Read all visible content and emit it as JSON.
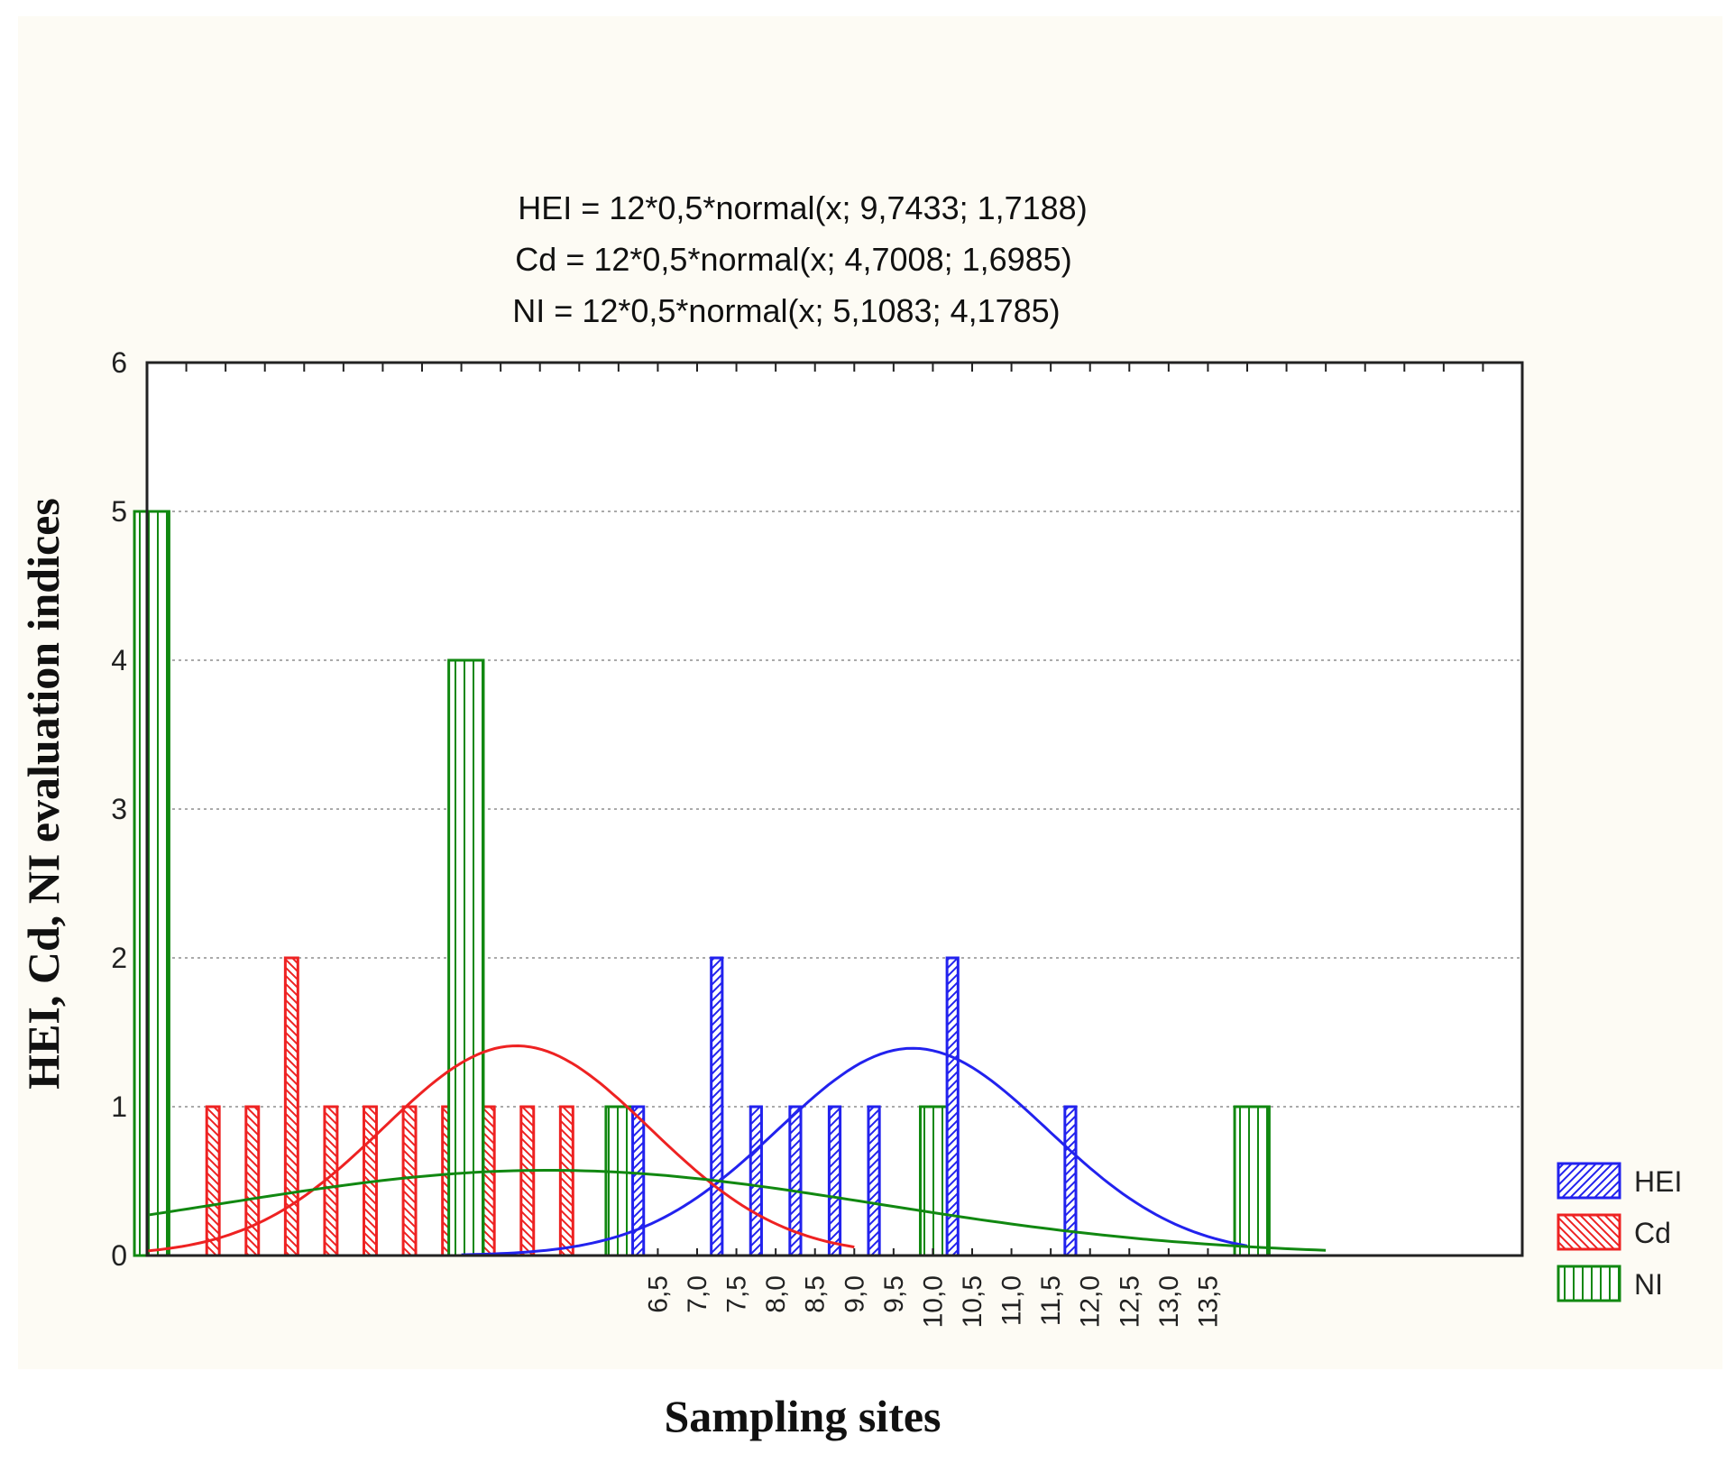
{
  "chart_data": {
    "type": "bar",
    "title": "",
    "formulas": [
      "HEI = 12*0,5*normal(x; 9,7433; 1,7188)",
      "Cd = 12*0,5*normal(x; 4,7008; 1,6985)",
      "NI = 12*0,5*normal(x; 5,1083; 4,1785)"
    ],
    "xlabel": "Sampling sites",
    "ylabel": "HEI, Cd, NI evaluation indices",
    "ylim": [
      0,
      6
    ],
    "xlim": [
      0,
      17.5
    ],
    "yticks": [
      "0",
      "1",
      "2",
      "3",
      "4",
      "5",
      "6"
    ],
    "xticks": [
      "6,5",
      "7,0",
      "7,5",
      "8,0",
      "8,5",
      "9,0",
      "9,5",
      "10,0",
      "10,5",
      "11,0",
      "11,5",
      "12,0",
      "12,5",
      "13,0",
      "13,5"
    ],
    "xtick_start": 6.5,
    "xtick_step": 0.5,
    "grid": true,
    "legend_position": "bottom-right",
    "series": [
      {
        "name": "HEI",
        "color": "#2222ee",
        "bins": [
          [
            6.0,
            0
          ],
          [
            6.5,
            1
          ],
          [
            7.0,
            0
          ],
          [
            7.5,
            2
          ],
          [
            8.0,
            1
          ],
          [
            8.5,
            1
          ],
          [
            9.0,
            1
          ],
          [
            9.5,
            1
          ],
          [
            10.0,
            0
          ],
          [
            10.5,
            2
          ],
          [
            11.0,
            0
          ],
          [
            11.5,
            0
          ],
          [
            12.0,
            1
          ],
          [
            12.5,
            0
          ]
        ],
        "curve": {
          "mean": 9.7433,
          "sd": 1.7188,
          "scale": 6,
          "from": 4.0,
          "to": 14.0
        }
      },
      {
        "name": "Cd",
        "color": "#ee2222",
        "bins": [
          [
            1.0,
            1
          ],
          [
            1.5,
            1
          ],
          [
            2.0,
            2
          ],
          [
            2.5,
            1
          ],
          [
            3.0,
            1
          ],
          [
            3.5,
            1
          ],
          [
            4.0,
            1
          ],
          [
            4.5,
            1
          ],
          [
            5.0,
            1
          ],
          [
            5.5,
            1
          ]
        ],
        "curve": {
          "mean": 4.7008,
          "sd": 1.6985,
          "scale": 6,
          "from": 0.0,
          "to": 9.0
        }
      },
      {
        "name": "NI",
        "color": "#118811",
        "bins": [
          [
            0.0,
            5
          ],
          [
            0.5,
            0
          ],
          [
            1.0,
            0
          ],
          [
            1.5,
            0
          ],
          [
            2.0,
            0
          ],
          [
            2.5,
            0
          ],
          [
            3.0,
            0
          ],
          [
            3.5,
            0
          ],
          [
            4.0,
            4
          ],
          [
            4.5,
            0
          ],
          [
            5.0,
            0
          ],
          [
            5.5,
            0
          ],
          [
            6.0,
            1
          ],
          [
            6.5,
            0
          ],
          [
            7.0,
            0
          ],
          [
            7.5,
            0
          ],
          [
            8.0,
            0
          ],
          [
            8.5,
            0
          ],
          [
            9.0,
            0
          ],
          [
            9.5,
            0
          ],
          [
            10.0,
            1
          ],
          [
            10.5,
            0
          ],
          [
            11.0,
            0
          ],
          [
            11.5,
            0
          ],
          [
            12.0,
            0
          ],
          [
            12.5,
            0
          ],
          [
            13.0,
            0
          ],
          [
            13.5,
            0
          ],
          [
            14.0,
            1
          ],
          [
            14.5,
            0
          ]
        ],
        "curve": {
          "mean": 5.1083,
          "sd": 4.1785,
          "scale": 6,
          "from": -0.5,
          "to": 15.0
        }
      }
    ]
  }
}
